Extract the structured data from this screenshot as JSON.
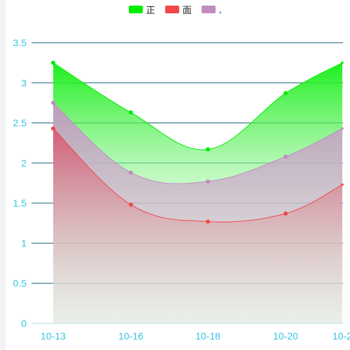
{
  "chart_data": {
    "type": "area",
    "categories": [
      "10-13",
      "10-16",
      "10-18",
      "10-20",
      "10-2"
    ],
    "x_ticks": [
      "10-13",
      "10-16",
      "10-18",
      "10-20",
      "10-2"
    ],
    "y_ticks": [
      "0",
      "0.5",
      "1",
      "1.5",
      "2",
      "2.5",
      "3",
      "3.5"
    ],
    "ylim": [
      0,
      3.5
    ],
    "grid": true,
    "legend_position": "top-center",
    "series": [
      {
        "name": "正",
        "color": "#00ee00",
        "values": [
          3.25,
          2.63,
          2.17,
          2.87,
          3.25
        ]
      },
      {
        "name": "面",
        "color": "#f04848",
        "values": [
          2.43,
          1.48,
          1.27,
          1.37,
          1.73
        ]
      },
      {
        "name": ",",
        "color": "#c08cc0",
        "values": [
          2.75,
          1.88,
          1.77,
          2.08,
          2.43
        ]
      }
    ]
  }
}
